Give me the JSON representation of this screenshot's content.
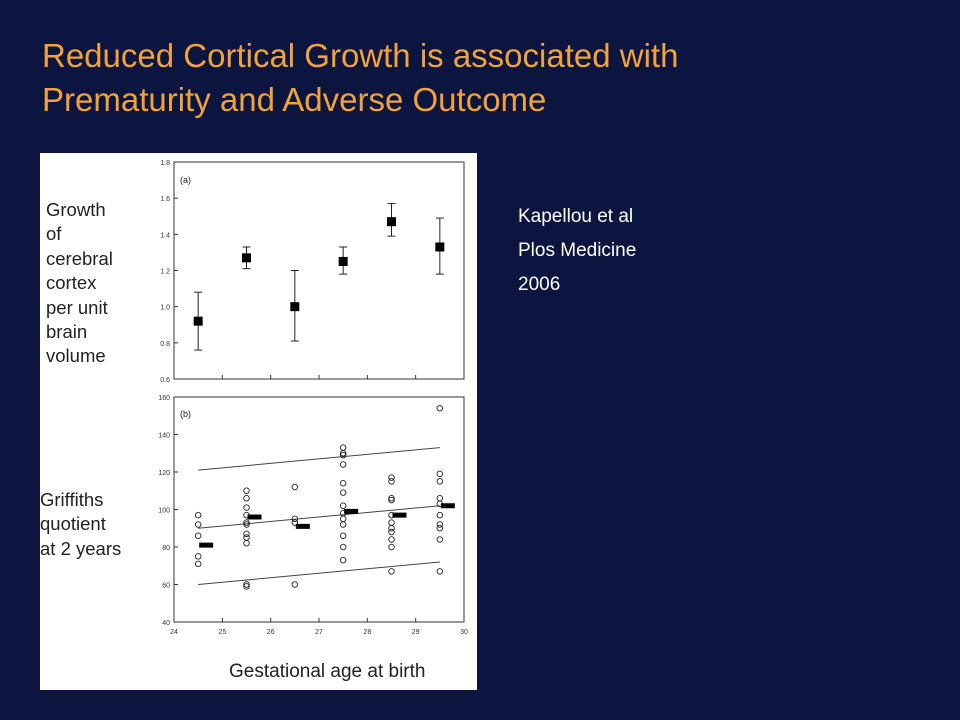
{
  "slide": {
    "title_line1": "Reduced Cortical Growth is associated with",
    "title_line2": "Prematurity and Adverse Outcome",
    "colors": {
      "background": "#0c1440",
      "title": "#f2a23a",
      "citation": "#ffffff"
    }
  },
  "citation": {
    "line1": "Kapellou et al",
    "line2": "Plos Medicine",
    "line3": "2006"
  },
  "figure": {
    "ylabel_a_lines": [
      "Growth",
      "of",
      "cerebral",
      "cortex",
      "per unit",
      "brain",
      "volume"
    ],
    "ylabel_b_lines": [
      "Griffiths",
      "quotient",
      "at 2 years"
    ],
    "xlabel": "Gestational age at birth"
  },
  "chart_data": [
    {
      "type": "scatter",
      "panel_label": "(a)",
      "title": "",
      "xlabel": "Gestational age at birth",
      "ylabel": "Growth of cerebral cortex per unit brain volume",
      "xlim": [
        24,
        30
      ],
      "ylim": [
        0.6,
        1.8
      ],
      "yticks": [
        "0.6",
        "0.8",
        "1.0",
        "1.2",
        "1.4",
        "1.6",
        "1.8"
      ],
      "grid": false,
      "points": [
        {
          "x": 24.5,
          "y": 0.92,
          "low": 0.76,
          "high": 1.08
        },
        {
          "x": 25.5,
          "y": 1.27,
          "low": 1.21,
          "high": 1.33
        },
        {
          "x": 26.5,
          "y": 1.0,
          "low": 0.81,
          "high": 1.2
        },
        {
          "x": 27.5,
          "y": 1.25,
          "low": 1.18,
          "high": 1.33
        },
        {
          "x": 28.5,
          "y": 1.47,
          "low": 1.39,
          "high": 1.57
        },
        {
          "x": 29.5,
          "y": 1.33,
          "low": 1.18,
          "high": 1.49
        }
      ]
    },
    {
      "type": "scatter",
      "panel_label": "(b)",
      "title": "",
      "xlabel": "Gestational age at birth",
      "ylabel": "Griffiths quotient at 2 years",
      "xlim": [
        24,
        30
      ],
      "ylim": [
        40,
        160
      ],
      "xticks": [
        "24",
        "25",
        "26",
        "27",
        "28",
        "29",
        "30"
      ],
      "yticks": [
        "40",
        "60",
        "80",
        "100",
        "120",
        "140",
        "160"
      ],
      "grid": false,
      "points": [
        {
          "x": 24.5,
          "values": [
            97,
            92,
            86,
            75,
            71
          ]
        },
        {
          "x": 25.5,
          "values": [
            110,
            106,
            101,
            97,
            93,
            92,
            87,
            85,
            82,
            60,
            59
          ]
        },
        {
          "x": 26.5,
          "values": [
            112,
            95,
            93,
            60
          ]
        },
        {
          "x": 27.5,
          "values": [
            133,
            130,
            129,
            124,
            114,
            109,
            102,
            98,
            95,
            92,
            86,
            80,
            73
          ]
        },
        {
          "x": 28.5,
          "values": [
            117,
            115,
            106,
            105,
            97,
            93,
            90,
            88,
            84,
            80,
            67
          ]
        },
        {
          "x": 29.5,
          "values": [
            154,
            119,
            115,
            106,
            103,
            97,
            92,
            90,
            84,
            67
          ]
        }
      ],
      "means": [
        {
          "x": 24.5,
          "y": 81
        },
        {
          "x": 25.5,
          "y": 96
        },
        {
          "x": 26.5,
          "y": 91
        },
        {
          "x": 27.5,
          "y": 99
        },
        {
          "x": 28.5,
          "y": 97
        },
        {
          "x": 29.5,
          "y": 102
        }
      ],
      "lines": [
        {
          "x": [
            24.5,
            29.5
          ],
          "y": [
            121,
            133
          ]
        },
        {
          "x": [
            24.5,
            29.5
          ],
          "y": [
            90,
            102
          ]
        },
        {
          "x": [
            24.5,
            29.5
          ],
          "y": [
            60,
            72
          ]
        }
      ]
    }
  ]
}
